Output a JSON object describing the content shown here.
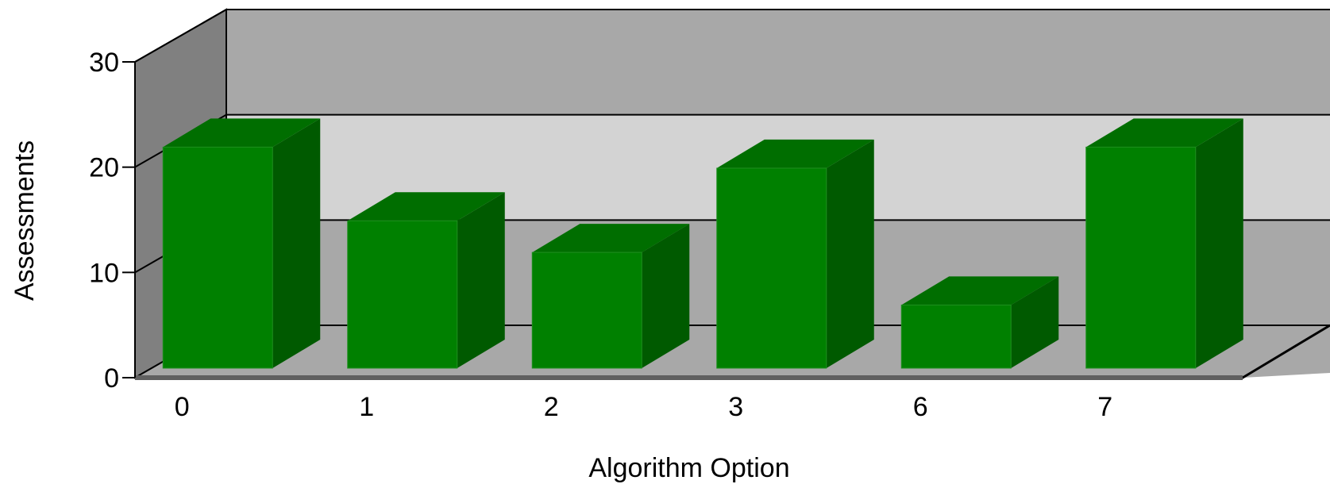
{
  "chart_data": {
    "type": "bar",
    "style": "3d",
    "title": "",
    "xlabel": "Algorithm Option",
    "ylabel": "Assessments",
    "categories": [
      "0",
      "1",
      "2",
      "3",
      "6",
      "7"
    ],
    "values": [
      21,
      14,
      11,
      19,
      6,
      21
    ],
    "ylim": [
      0,
      30
    ],
    "yticks": [
      0,
      10,
      20,
      30
    ],
    "grid": true,
    "legend": "none"
  },
  "colors": {
    "bar_front": "#008000",
    "bar_top": "#006e00",
    "bar_side": "#005a00",
    "wall_back_dark": "#a8a8a8",
    "wall_back_light": "#d3d3d3",
    "wall_side": "#808080",
    "floor": "#a8a8a8"
  }
}
